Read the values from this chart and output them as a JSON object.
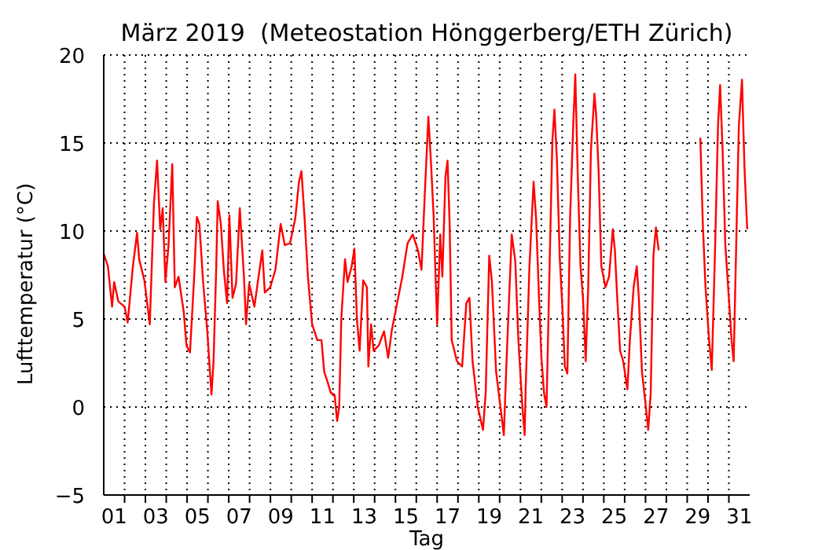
{
  "chart_data": {
    "type": "line",
    "title": "März 2019  (Meteostation Hönggerberg/ETH Zürich)",
    "xlabel": "Tag",
    "ylabel": "Lufttemperatur (°C)",
    "xlim": [
      1,
      32
    ],
    "ylim": [
      -5,
      20
    ],
    "yticks": [
      -5,
      0,
      5,
      10,
      15,
      20
    ],
    "xticks": [
      {
        "value": 1.5,
        "label": "01"
      },
      {
        "value": 3.5,
        "label": "03"
      },
      {
        "value": 5.5,
        "label": "05"
      },
      {
        "value": 7.5,
        "label": "07"
      },
      {
        "value": 9.5,
        "label": "09"
      },
      {
        "value": 11.5,
        "label": "11"
      },
      {
        "value": 13.5,
        "label": "13"
      },
      {
        "value": 15.5,
        "label": "15"
      },
      {
        "value": 17.5,
        "label": "17"
      },
      {
        "value": 19.5,
        "label": "19"
      },
      {
        "value": 21.5,
        "label": "21"
      },
      {
        "value": 23.5,
        "label": "23"
      },
      {
        "value": 25.5,
        "label": "25"
      },
      {
        "value": 27.5,
        "label": "27"
      },
      {
        "value": 29.5,
        "label": "29"
      },
      {
        "value": 31.5,
        "label": "31"
      },
      {
        "value": 2,
        "label": null
      },
      {
        "value": 3,
        "label": null
      },
      {
        "value": 4,
        "label": null
      },
      {
        "value": 5,
        "label": null
      },
      {
        "value": 6,
        "label": null
      },
      {
        "value": 7,
        "label": null
      },
      {
        "value": 8,
        "label": null
      },
      {
        "value": 9,
        "label": null
      },
      {
        "value": 10,
        "label": null
      },
      {
        "value": 11,
        "label": null
      },
      {
        "value": 12,
        "label": null
      },
      {
        "value": 13,
        "label": null
      },
      {
        "value": 14,
        "label": null
      },
      {
        "value": 15,
        "label": null
      },
      {
        "value": 16,
        "label": null
      },
      {
        "value": 17,
        "label": null
      },
      {
        "value": 18,
        "label": null
      },
      {
        "value": 19,
        "label": null
      },
      {
        "value": 20,
        "label": null
      },
      {
        "value": 21,
        "label": null
      },
      {
        "value": 22,
        "label": null
      },
      {
        "value": 23,
        "label": null
      },
      {
        "value": 24,
        "label": null
      },
      {
        "value": 25,
        "label": null
      },
      {
        "value": 26,
        "label": null
      },
      {
        "value": 27,
        "label": null
      },
      {
        "value": 28,
        "label": null
      },
      {
        "value": 29,
        "label": null
      },
      {
        "value": 30,
        "label": null
      },
      {
        "value": 31,
        "label": null
      }
    ],
    "grid": true,
    "line_style": "solid",
    "color": "#ff0000",
    "x": [
      1.0,
      1.2,
      1.4,
      1.5,
      1.7,
      2.0,
      2.15,
      2.4,
      2.6,
      2.7,
      2.95,
      3.21,
      3.41,
      3.56,
      3.71,
      3.83,
      3.96,
      4.11,
      4.29,
      4.41,
      4.59,
      4.84,
      4.97,
      5.14,
      5.34,
      5.47,
      5.59,
      5.77,
      5.97,
      6.17,
      6.27,
      6.4,
      6.47,
      6.62,
      6.77,
      6.92,
      7.03,
      7.18,
      7.35,
      7.53,
      7.73,
      7.83,
      7.98,
      8.23,
      8.43,
      8.61,
      8.73,
      8.99,
      9.24,
      9.49,
      9.69,
      9.94,
      10.19,
      10.37,
      10.49,
      10.64,
      10.8,
      11.0,
      11.25,
      11.45,
      11.58,
      11.75,
      11.9,
      12.08,
      12.2,
      12.3,
      12.4,
      12.58,
      12.7,
      12.9,
      13.03,
      13.15,
      13.28,
      13.45,
      13.63,
      13.7,
      13.83,
      13.95,
      14.2,
      14.45,
      14.65,
      14.83,
      15.08,
      15.33,
      15.58,
      15.83,
      16.08,
      16.25,
      16.4,
      16.58,
      16.7,
      16.83,
      17.0,
      17.15,
      17.25,
      17.4,
      17.5,
      17.6,
      17.7,
      17.95,
      18.2,
      18.4,
      18.55,
      18.7,
      18.95,
      19.2,
      19.33,
      19.5,
      19.63,
      19.83,
      20.08,
      20.2,
      20.33,
      20.58,
      20.75,
      20.9,
      21.08,
      21.2,
      21.25,
      21.43,
      21.63,
      21.75,
      21.88,
      22.0,
      22.13,
      22.25,
      22.38,
      22.53,
      22.63,
      22.75,
      22.88,
      23.0,
      23.13,
      23.25,
      23.38,
      23.53,
      23.63,
      23.75,
      23.88,
      24.0,
      24.13,
      24.25,
      24.38,
      24.55,
      24.63,
      24.75,
      24.88,
      25.08,
      25.25,
      25.43,
      25.53,
      25.63,
      25.78,
      25.93,
      26.13,
      26.25,
      26.43,
      26.58,
      26.68,
      26.83,
      27.0,
      27.13,
      27.25,
      27.38,
      27.5,
      27.63,
      28.5,
      29.63,
      29.75,
      29.88,
      30.05,
      30.18,
      30.33,
      30.48,
      30.58,
      30.7,
      30.83,
      31.0,
      31.13,
      31.23,
      31.38,
      31.48,
      31.63,
      31.75,
      31.88
    ],
    "values": [
      8.7,
      8.0,
      5.7,
      7.1,
      6.0,
      5.7,
      4.8,
      8.0,
      9.9,
      8.4,
      7.2,
      4.7,
      11.6,
      14.0,
      10.1,
      11.3,
      7.1,
      9.2,
      13.8,
      6.8,
      7.4,
      5.4,
      3.5,
      3.1,
      7.4,
      10.8,
      10.4,
      7.1,
      4.3,
      0.7,
      2.6,
      8.0,
      11.7,
      10.4,
      7.7,
      5.9,
      10.9,
      6.2,
      7.0,
      11.3,
      7.4,
      4.7,
      7.0,
      5.7,
      7.4,
      8.9,
      6.5,
      6.8,
      7.8,
      10.4,
      9.2,
      9.3,
      10.7,
      12.8,
      13.4,
      10.7,
      7.4,
      4.7,
      3.8,
      3.8,
      2.0,
      1.4,
      0.8,
      0.7,
      -0.8,
      0.0,
      5.0,
      8.4,
      7.1,
      8.0,
      9.0,
      5.0,
      3.2,
      7.2,
      6.8,
      2.3,
      4.7,
      3.2,
      3.5,
      4.3,
      2.8,
      4.4,
      5.9,
      7.4,
      9.3,
      9.8,
      8.9,
      7.8,
      11.9,
      16.5,
      14.0,
      10.9,
      4.7,
      9.8,
      7.4,
      13.1,
      14.0,
      10.4,
      3.8,
      2.6,
      2.3,
      5.9,
      6.2,
      2.6,
      0.0,
      -1.3,
      0.8,
      8.6,
      7.1,
      2.0,
      -0.4,
      -1.6,
      2.6,
      9.8,
      8.3,
      3.8,
      0.2,
      -1.6,
      1.1,
      8.0,
      12.8,
      10.7,
      6.5,
      2.9,
      0.8,
      0.0,
      7.1,
      15.1,
      16.9,
      14.0,
      8.6,
      5.9,
      2.3,
      1.9,
      10.7,
      16.0,
      18.9,
      13.1,
      8.0,
      6.2,
      2.6,
      6.8,
      14.6,
      17.8,
      16.6,
      13.4,
      8.0,
      6.8,
      7.4,
      10.1,
      8.9,
      6.5,
      3.2,
      2.6,
      1.0,
      3.8,
      6.8,
      8.0,
      6.2,
      2.0,
      0.2,
      -1.3,
      0.8,
      8.6,
      10.2,
      8.9,
      null,
      15.3,
      10.4,
      6.8,
      3.8,
      2.1,
      8.6,
      16.0,
      18.3,
      14.6,
      9.2,
      6.2,
      3.8,
      2.6,
      10.7,
      16.0,
      18.6,
      13.6,
      10.1
    ]
  }
}
